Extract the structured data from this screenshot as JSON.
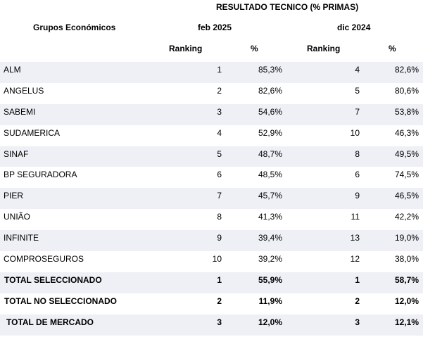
{
  "header": {
    "title": "RESULTADO TECNICO (% PRIMAS)",
    "group_label": "Grupos Económicos",
    "period_1": "feb 2025",
    "period_2": "dic 2024",
    "ranking_label": "Ranking",
    "pct_label": "%"
  },
  "rows": [
    {
      "name": "ALM",
      "rank_1": "1",
      "pct_1": "85,3%",
      "rank_2": "4",
      "pct_2": "82,6%"
    },
    {
      "name": "ANGELUS",
      "rank_1": "2",
      "pct_1": "82,6%",
      "rank_2": "5",
      "pct_2": "80,6%"
    },
    {
      "name": "SABEMI",
      "rank_1": "3",
      "pct_1": "54,6%",
      "rank_2": "7",
      "pct_2": "53,8%"
    },
    {
      "name": "SUDAMERICA",
      "rank_1": "4",
      "pct_1": "52,9%",
      "rank_2": "10",
      "pct_2": "46,3%"
    },
    {
      "name": "SINAF",
      "rank_1": "5",
      "pct_1": "48,7%",
      "rank_2": "8",
      "pct_2": "49,5%"
    },
    {
      "name": "BP SEGURADORA",
      "rank_1": "6",
      "pct_1": "48,5%",
      "rank_2": "6",
      "pct_2": "74,5%"
    },
    {
      "name": "PIER",
      "rank_1": "7",
      "pct_1": "45,7%",
      "rank_2": "9",
      "pct_2": "46,5%"
    },
    {
      "name": "UNIÃO",
      "rank_1": "8",
      "pct_1": "41,3%",
      "rank_2": "11",
      "pct_2": "42,2%"
    },
    {
      "name": "INFINITE",
      "rank_1": "9",
      "pct_1": "39,4%",
      "rank_2": "13",
      "pct_2": "19,0%"
    },
    {
      "name": "COMPROSEGUROS",
      "rank_1": "10",
      "pct_1": "39,2%",
      "rank_2": "12",
      "pct_2": "38,0%"
    }
  ],
  "totals": [
    {
      "name": "TOTAL SELECCIONADO",
      "rank_1": "1",
      "pct_1": "55,9%",
      "rank_2": "1",
      "pct_2": "58,7%"
    },
    {
      "name": "TOTAL NO SELECCIONADO",
      "rank_1": "2",
      "pct_1": "11,9%",
      "rank_2": "2",
      "pct_2": "12,0%"
    },
    {
      "name": "TOTAL DE MERCADO",
      "rank_1": "3",
      "pct_1": "12,0%",
      "rank_2": "3",
      "pct_2": "12,1%"
    }
  ],
  "colors": {
    "shade": "#eef0f6"
  }
}
